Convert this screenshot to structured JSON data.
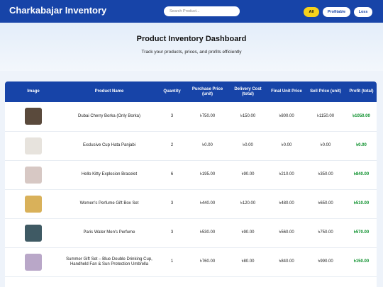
{
  "nav": {
    "brand": "Charkabajar Inventory",
    "search_placeholder": "Search Product...",
    "filters": [
      "All",
      "Profitable",
      "Loss"
    ]
  },
  "hero": {
    "title": "Product Inventory Dashboard",
    "subtitle": "Track your products, prices, and profits efficiently"
  },
  "table": {
    "headers": [
      "Image",
      "Product Name",
      "Quantity",
      "Purchase Price (unit)",
      "Delivery Cost (total)",
      "Final Unit Price",
      "Sell Price (unit)",
      "Profit (total)"
    ],
    "rows": [
      {
        "thumb": "#5a4a3c",
        "name": "Dubai Cherry Borka (Only Borka)",
        "qty": "3",
        "purchase": "৳750.00",
        "delivery": "৳150.00",
        "final": "৳800.00",
        "sell": "৳1150.00",
        "profit": "৳1050.00"
      },
      {
        "thumb": "#e7e3dd",
        "name": "Exclusive Cup Hata Panjabi",
        "qty": "2",
        "purchase": "৳0.00",
        "delivery": "৳0.00",
        "final": "৳0.00",
        "sell": "৳0.00",
        "profit": "৳0.00"
      },
      {
        "thumb": "#d7c8c4",
        "name": "Hello Kitty Explosion Bracelet",
        "qty": "6",
        "purchase": "৳195.00",
        "delivery": "৳90.00",
        "final": "৳210.00",
        "sell": "৳350.00",
        "profit": "৳840.00"
      },
      {
        "thumb": "#d9b15a",
        "name": "Women's Perfume Gift Box Set",
        "qty": "3",
        "purchase": "৳440.00",
        "delivery": "৳120.00",
        "final": "৳480.00",
        "sell": "৳650.00",
        "profit": "৳510.00"
      },
      {
        "thumb": "#3f5a64",
        "name": "Paris Water Men's Perfume",
        "qty": "3",
        "purchase": "৳530.00",
        "delivery": "৳90.00",
        "final": "৳560.00",
        "sell": "৳750.00",
        "profit": "৳570.00"
      },
      {
        "thumb": "#b9a7c8",
        "name": "Summer Gift Set – Blue Double Drinking Cup, Handheld Fan & Sun Protection Umbrella",
        "qty": "1",
        "purchase": "৳760.00",
        "delivery": "৳80.00",
        "final": "৳840.00",
        "sell": "৳990.00",
        "profit": "৳150.00"
      }
    ]
  }
}
